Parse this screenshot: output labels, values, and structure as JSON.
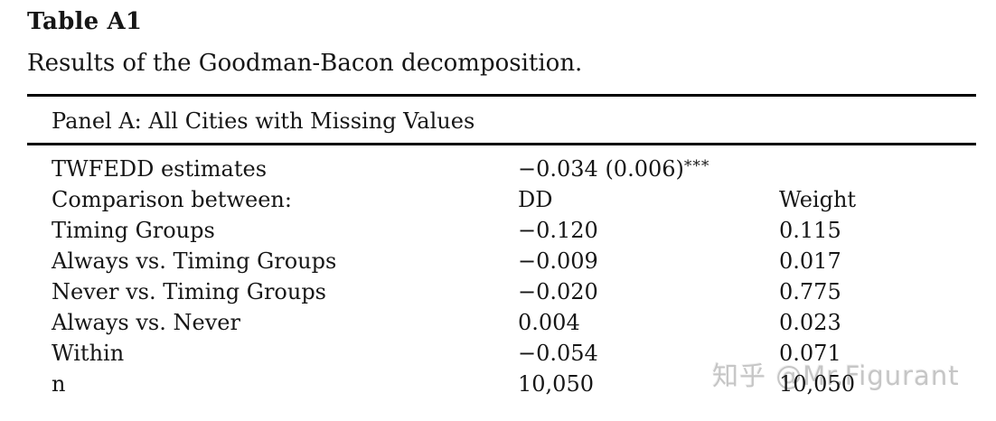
{
  "title": "Table A1",
  "subtitle": "Results of the Goodman-Bacon decomposition.",
  "panel": {
    "label": "Panel A: All Cities with Missing Values"
  },
  "table": {
    "rows": [
      {
        "label": "TWFEDD estimates",
        "dd": "−0.034 (0.006)",
        "dd_sig": "***",
        "weight": ""
      },
      {
        "label": "Comparison between:",
        "dd": "DD",
        "dd_sig": "",
        "weight": "Weight"
      },
      {
        "label": "Timing Groups",
        "dd": "−0.120",
        "dd_sig": "",
        "weight": "0.115"
      },
      {
        "label": "Always vs. Timing Groups",
        "dd": "−0.009",
        "dd_sig": "",
        "weight": "0.017"
      },
      {
        "label": "Never vs. Timing Groups",
        "dd": "−0.020",
        "dd_sig": "",
        "weight": "0.775"
      },
      {
        "label": "Always vs. Never",
        "dd": "0.004",
        "dd_sig": "",
        "weight": "0.023"
      },
      {
        "label": "Within",
        "dd": "−0.054",
        "dd_sig": "",
        "weight": "0.071"
      },
      {
        "label": "n",
        "dd": "10,050",
        "dd_sig": "",
        "weight": "10,050"
      }
    ]
  },
  "watermark": {
    "text": "知乎 @Mr.Figurant",
    "color": "#c6c6c6"
  },
  "colors": {
    "text": "#161616",
    "rule": "#000000",
    "background": "#ffffff"
  }
}
